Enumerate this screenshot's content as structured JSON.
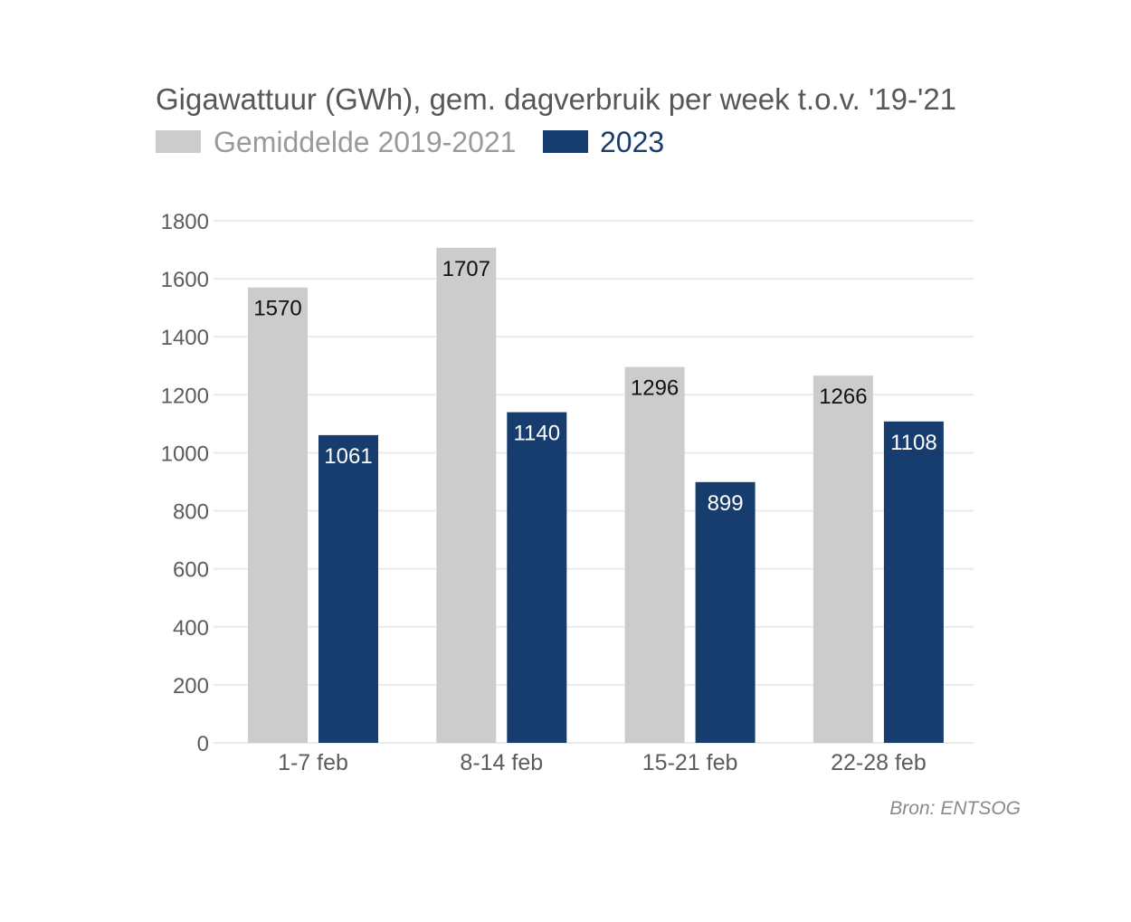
{
  "chart_data": {
    "type": "bar",
    "title": "Gigawattuur (GWh), gem. dagverbruik per week t.o.v. '19-'21",
    "categories": [
      "1-7 feb",
      "8-14 feb",
      "15-21 feb",
      "22-28 feb"
    ],
    "series": [
      {
        "name": "Gemiddelde 2019-2021",
        "color": "#cccccc",
        "label_color": "#111111",
        "values": [
          1570,
          1707,
          1296,
          1266
        ]
      },
      {
        "name": "2023",
        "color": "#163d6e",
        "label_color": "#ffffff",
        "values": [
          1061,
          1140,
          899,
          1108
        ]
      }
    ],
    "ylim": [
      0,
      1800
    ],
    "yticks": [
      0,
      200,
      400,
      600,
      800,
      1000,
      1200,
      1400,
      1600,
      1800
    ],
    "xlabel": "",
    "ylabel": "",
    "grid": true,
    "legend_position": "top-left",
    "source": "Bron: ENTSOG"
  }
}
